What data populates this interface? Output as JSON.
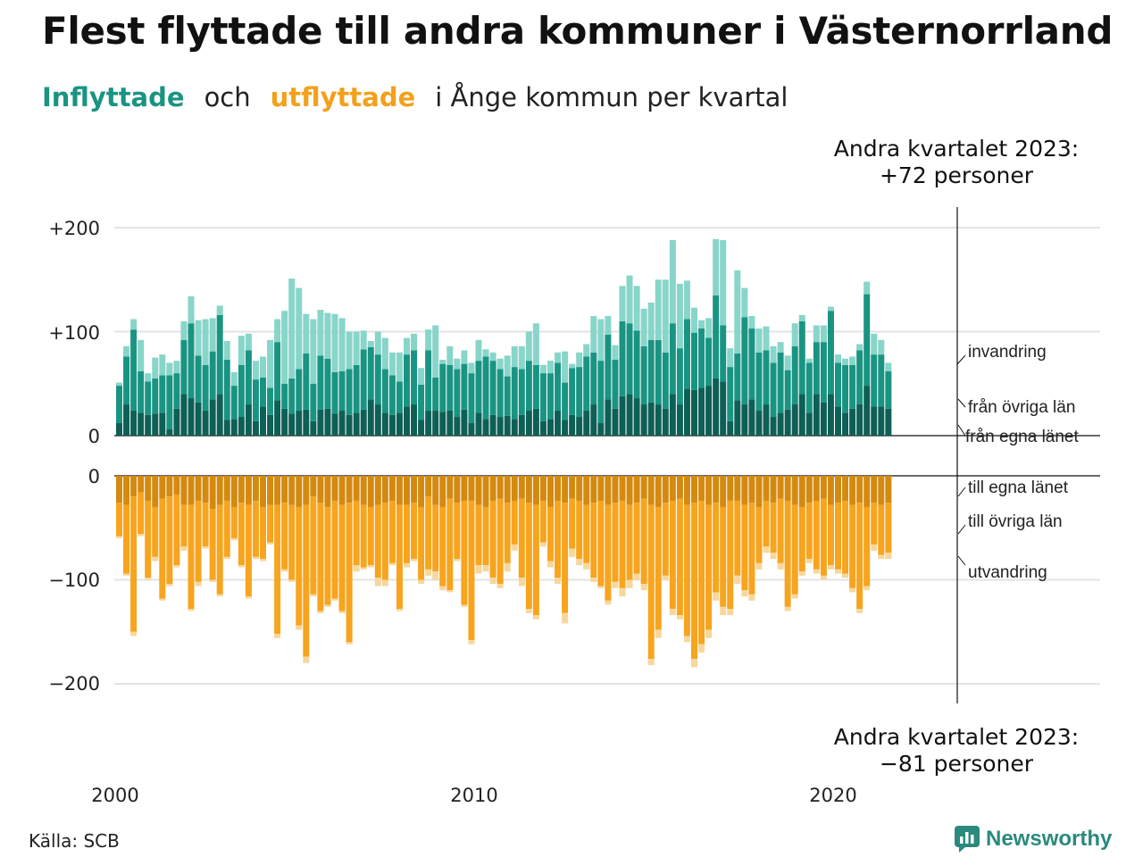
{
  "title": "Flest flyttade till andra kommuner i Västernorrland",
  "subtitle": {
    "part1": "Inflyttade",
    "part2": "och",
    "part3": "utflyttade",
    "part4": "i Ånge kommun per kvartal"
  },
  "source": "Källa: SCB",
  "brand": "Newsworthy",
  "colors": {
    "in_dark": "#0e5f55",
    "in_mid": "#1a9482",
    "in_light": "#88d5c9",
    "out_dark": "#d48a10",
    "out_mid": "#f7a41e",
    "out_light": "#f7d79c"
  },
  "chart_data": {
    "type": "bar",
    "x_ticks": [
      "2000",
      "2010",
      "2020"
    ],
    "y_ticks_top": [
      "+200",
      "+100",
      "0"
    ],
    "y_ticks_bottom": [
      "0",
      "−100",
      "−200"
    ],
    "ylim_in": [
      0,
      220
    ],
    "ylim_out": [
      -220,
      0
    ],
    "legend_in": [
      "invandring",
      "från övriga län",
      "från egna länet"
    ],
    "legend_out": [
      "till egna länet",
      "till övriga län",
      "utvandring"
    ],
    "annotation_top": [
      "Andra kvartalet 2023:",
      "+72 personer"
    ],
    "annotation_bottom": [
      "Andra kvartalet 2023:",
      "−81 personer"
    ],
    "series": [
      {
        "name": "från egna länet",
        "values": [
          12,
          30,
          24,
          22,
          20,
          21,
          22,
          6,
          26,
          40,
          36,
          32,
          24,
          35,
          40,
          15,
          16,
          18,
          30,
          14,
          28,
          20,
          34,
          26,
          21,
          24,
          25,
          14,
          25,
          26,
          21,
          24,
          20,
          22,
          25,
          35,
          30,
          22,
          20,
          22,
          28,
          30,
          15,
          24,
          24,
          23,
          24,
          18,
          25,
          12,
          22,
          16,
          20,
          18,
          19,
          16,
          20,
          24,
          26,
          14,
          16,
          24,
          15,
          20,
          18,
          24,
          30,
          12,
          35,
          26,
          38,
          40,
          36,
          30,
          32,
          30,
          26,
          40,
          30,
          45,
          44,
          46,
          48,
          55,
          52,
          14,
          34,
          30,
          35,
          24,
          30,
          18,
          22,
          25,
          30,
          40,
          22,
          40,
          32,
          40,
          28,
          22,
          26,
          30,
          48,
          28,
          28,
          26
        ]
      },
      {
        "name": "från övriga län",
        "values": [
          36,
          46,
          78,
          40,
          32,
          34,
          36,
          52,
          34,
          52,
          72,
          45,
          44,
          46,
          76,
          58,
          32,
          50,
          52,
          40,
          28,
          26,
          56,
          24,
          34,
          40,
          54,
          36,
          52,
          48,
          40,
          38,
          44,
          46,
          58,
          50,
          48,
          42,
          38,
          30,
          50,
          52,
          34,
          58,
          32,
          46,
          44,
          46,
          44,
          48,
          50,
          60,
          52,
          46,
          38,
          50,
          44,
          48,
          42,
          46,
          44,
          46,
          36,
          45,
          48,
          52,
          50,
          60,
          62,
          47,
          72,
          68,
          65,
          56,
          60,
          62,
          54,
          68,
          54,
          67,
          55,
          57,
          46,
          80,
          54,
          52,
          45,
          84,
          68,
          56,
          52,
          52,
          58,
          38,
          56,
          70,
          48,
          50,
          58,
          80,
          42,
          46,
          42,
          52,
          88,
          50,
          50,
          36
        ]
      },
      {
        "name": "invandring",
        "values": [
          3,
          10,
          10,
          30,
          8,
          20,
          20,
          12,
          12,
          18,
          26,
          34,
          44,
          32,
          9,
          18,
          13,
          28,
          16,
          18,
          20,
          46,
          22,
          70,
          96,
          78,
          38,
          62,
          44,
          44,
          56,
          51,
          36,
          32,
          18,
          6,
          22,
          30,
          22,
          28,
          16,
          16,
          16,
          20,
          50,
          4,
          18,
          10,
          13,
          10,
          20,
          7,
          8,
          10,
          20,
          20,
          22,
          28,
          40,
          8,
          12,
          10,
          30,
          4,
          14,
          12,
          35,
          40,
          18,
          14,
          34,
          46,
          43,
          36,
          36,
          58,
          70,
          80,
          62,
          37,
          24,
          8,
          19,
          54,
          82,
          18,
          80,
          28,
          12,
          23,
          23,
          16,
          10,
          14,
          22,
          6,
          4,
          16,
          16,
          4,
          8,
          6,
          8,
          6,
          12,
          20,
          14,
          8
        ]
      },
      {
        "name": "till egna länet",
        "values": [
          -26,
          -28,
          -20,
          -16,
          -24,
          -30,
          -22,
          -20,
          -18,
          -28,
          -28,
          -24,
          -26,
          -32,
          -28,
          -24,
          -30,
          -26,
          -28,
          -24,
          -30,
          -28,
          -28,
          -26,
          -28,
          -30,
          -28,
          -20,
          -26,
          -30,
          -24,
          -28,
          -26,
          -24,
          -28,
          -30,
          -28,
          -26,
          -24,
          -28,
          -28,
          -26,
          -30,
          -20,
          -28,
          -30,
          -22,
          -26,
          -24,
          -24,
          -28,
          -30,
          -24,
          -22,
          -26,
          -24,
          -22,
          -26,
          -28,
          -24,
          -30,
          -24,
          -26,
          -22,
          -24,
          -28,
          -26,
          -24,
          -28,
          -26,
          -24,
          -28,
          -26,
          -22,
          -28,
          -30,
          -26,
          -24,
          -22,
          -28,
          -26,
          -24,
          -28,
          -26,
          -30,
          -24,
          -24,
          -28,
          -26,
          -30,
          -24,
          -26,
          -22,
          -24,
          -28,
          -30,
          -26,
          -24,
          -22,
          -28,
          -26,
          -24,
          -28,
          -26,
          -30,
          -26,
          -28,
          -26
        ]
      },
      {
        "name": "till övriga län",
        "values": [
          -32,
          -66,
          -130,
          -40,
          -74,
          -48,
          -96,
          -84,
          -68,
          -40,
          -100,
          -78,
          -42,
          -68,
          -86,
          -54,
          -30,
          -60,
          -88,
          -54,
          -50,
          -36,
          -124,
          -64,
          -72,
          -114,
          -146,
          -94,
          -104,
          -94,
          -94,
          -102,
          -134,
          -62,
          -60,
          -56,
          -70,
          -74,
          -60,
          -100,
          -56,
          -54,
          -70,
          -70,
          -64,
          -76,
          -88,
          -54,
          -100,
          -134,
          -58,
          -56,
          -74,
          -82,
          -58,
          -42,
          -76,
          -102,
          -106,
          -40,
          -52,
          -74,
          -106,
          -48,
          -56,
          -56,
          -72,
          -82,
          -92,
          -76,
          -84,
          -72,
          -68,
          -82,
          -148,
          -118,
          -70,
          -104,
          -112,
          -126,
          -150,
          -138,
          -120,
          -86,
          -96,
          -104,
          -72,
          -82,
          -88,
          -54,
          -44,
          -48,
          -62,
          -102,
          -86,
          -62,
          -54,
          -66,
          -74,
          -58,
          -64,
          -70,
          -80,
          -102,
          -76,
          -40,
          -48,
          -48
        ]
      },
      {
        "name": "utvandring",
        "values": [
          -2,
          -2,
          -4,
          -2,
          -2,
          -4,
          -2,
          -2,
          -2,
          -4,
          -2,
          -4,
          -2,
          -2,
          -2,
          -2,
          -2,
          -2,
          -2,
          -2,
          -2,
          -2,
          -4,
          -2,
          -2,
          -4,
          -6,
          -2,
          -2,
          -2,
          -2,
          -2,
          -2,
          -6,
          -2,
          -2,
          -8,
          -6,
          -2,
          -2,
          -4,
          -2,
          -4,
          -6,
          -8,
          -4,
          -2,
          -2,
          -2,
          -4,
          -8,
          -6,
          -6,
          -4,
          -8,
          -6,
          -8,
          -4,
          -4,
          -4,
          -6,
          -6,
          -10,
          -8,
          -6,
          -6,
          -4,
          -2,
          -4,
          -6,
          -8,
          -8,
          -6,
          -6,
          -6,
          -8,
          -4,
          -6,
          -4,
          -6,
          -8,
          -8,
          -8,
          -8,
          -8,
          -6,
          -8,
          -6,
          -6,
          -6,
          -6,
          -6,
          -6,
          -4,
          -4,
          -4,
          -4,
          -4,
          -4,
          -4,
          -4,
          -4,
          -4,
          -4,
          -4,
          -6,
          -4,
          -6
        ]
      }
    ]
  }
}
